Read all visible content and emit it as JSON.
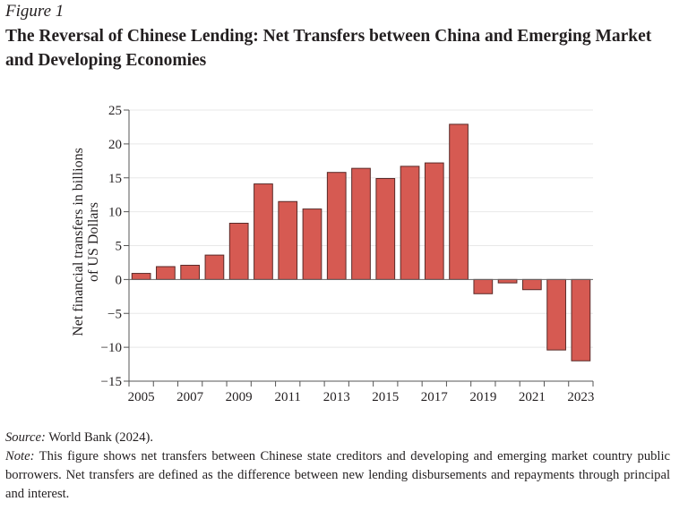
{
  "figure_label": "Figure 1",
  "title": "The Reversal of Chinese Lending: Net Transfers between China and Emerging Market and Developing Economies",
  "source_label": "Source:",
  "source_text": " World Bank (2024).",
  "note_label": "Note:",
  "note_text": " This figure shows net transfers between Chinese state creditors and developing and emerging market country public borrowers. Net transfers are defined as the difference between new lending disbursements and repayments through principal and interest.",
  "chart_data": {
    "type": "bar",
    "title": "The Reversal of Chinese Lending: Net Transfers between China and Emerging Market and Developing Economies",
    "xlabel": "",
    "ylabel": "Net financial transfers in billions of US Dollars",
    "ylabel_lines": [
      "Net financial transfers in billions",
      "of US Dollars"
    ],
    "ylim": [
      -15,
      25
    ],
    "yticks": [
      25,
      20,
      15,
      10,
      5,
      0,
      -5,
      -10,
      -15
    ],
    "ytick_labels": [
      "25",
      "20",
      "15",
      "10",
      "5",
      "0",
      "−5",
      "−10",
      "−15"
    ],
    "grid": true,
    "categories": [
      "2005",
      "2006",
      "2007",
      "2008",
      "2009",
      "2010",
      "2011",
      "2012",
      "2013",
      "2014",
      "2015",
      "2016",
      "2017",
      "2018",
      "2019",
      "2020",
      "2021",
      "2022",
      "2023"
    ],
    "xtick_labels": [
      "2005",
      "2007",
      "2009",
      "2011",
      "2013",
      "2015",
      "2017",
      "2019",
      "2021",
      "2023"
    ],
    "values": [
      0.9,
      1.9,
      2.1,
      3.6,
      8.3,
      14.1,
      11.5,
      10.4,
      15.8,
      16.4,
      14.9,
      16.7,
      17.2,
      22.9,
      -2.1,
      -0.5,
      -1.5,
      -10.4,
      -12.0
    ],
    "bar_color": "#d65a52",
    "bar_edge_color": "#5a2a28",
    "legend": "none"
  }
}
